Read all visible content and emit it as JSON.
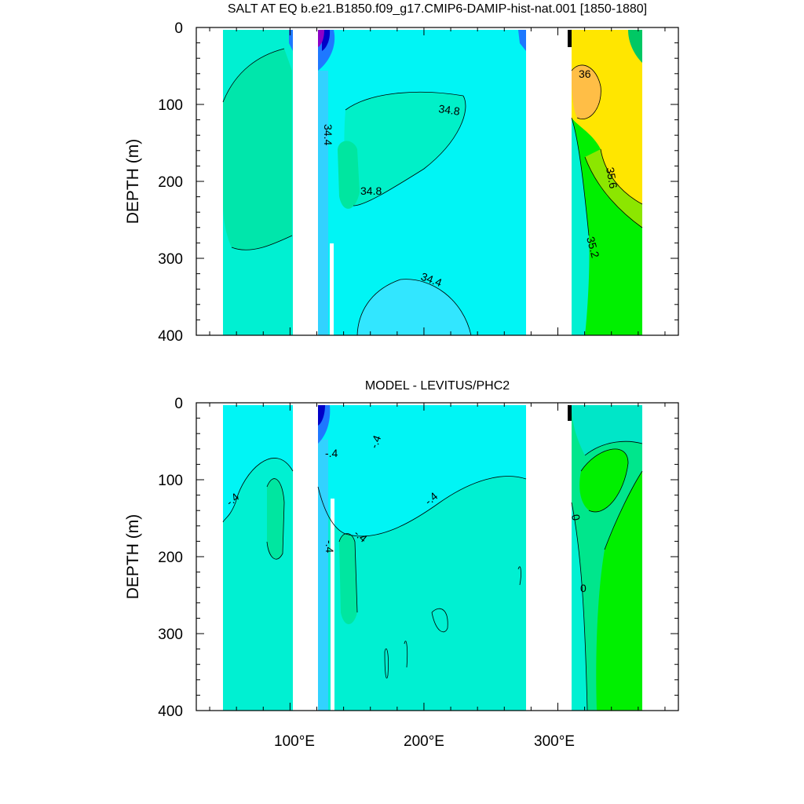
{
  "chart_data": [
    {
      "type": "contour",
      "title": "SALT AT EQ b.e21.B1850.f09_g17.CMIP6-DAMIP-hist-nat.001 [1850-1880]",
      "xlabel": "",
      "ylabel": "DEPTH (m)",
      "xlim": [
        30,
        390
      ],
      "ylim": [
        400,
        0
      ],
      "x_ticks": [
        {
          "value": 100,
          "label": "100°E"
        },
        {
          "value": 200,
          "label": "200°E"
        },
        {
          "value": 300,
          "label": "300°E"
        }
      ],
      "y_ticks": [
        {
          "value": 0,
          "label": "0"
        },
        {
          "value": 100,
          "label": "100"
        },
        {
          "value": 200,
          "label": "200"
        },
        {
          "value": 300,
          "label": "300"
        },
        {
          "value": 400,
          "label": "400"
        }
      ],
      "contour_labels": [
        {
          "text": "36",
          "x": 335,
          "depth": 60
        },
        {
          "text": "34.8",
          "x": 212,
          "depth": 105
        },
        {
          "text": "34.4",
          "x": 128,
          "depth": 138
        },
        {
          "text": "34.8",
          "x": 150,
          "depth": 212
        },
        {
          "text": "35.6",
          "x": 352,
          "depth": 200
        },
        {
          "text": "35.2",
          "x": 342,
          "depth": 285
        },
        {
          "text": "34.4",
          "x": 200,
          "depth": 330
        }
      ]
    },
    {
      "type": "contour",
      "title": "MODEL - LEVITUS/PHC2",
      "xlabel": "",
      "ylabel": "DEPTH (m)",
      "xlim": [
        30,
        390
      ],
      "ylim": [
        400,
        0
      ],
      "x_ticks": [
        {
          "value": 100,
          "label": "100°E"
        },
        {
          "value": 200,
          "label": "200°E"
        },
        {
          "value": 300,
          "label": "300°E"
        }
      ],
      "y_ticks": [
        {
          "value": 0,
          "label": "0"
        },
        {
          "value": 100,
          "label": "100"
        },
        {
          "value": 200,
          "label": "200"
        },
        {
          "value": 300,
          "label": "300"
        },
        {
          "value": 400,
          "label": "400"
        }
      ],
      "contour_labels": [
        {
          "text": "-.4",
          "x": 55,
          "depth": 128
        },
        {
          "text": "-.4",
          "x": 130,
          "depth": 68
        },
        {
          "text": "-.4",
          "x": 168,
          "depth": 52
        },
        {
          "text": "-.4",
          "x": 210,
          "depth": 128
        },
        {
          "text": "-.4",
          "x": 130,
          "depth": 168
        },
        {
          "text": "-.4",
          "x": 150,
          "depth": 170
        },
        {
          "text": "0",
          "x": 316,
          "depth": 140
        },
        {
          "text": "0",
          "x": 323,
          "depth": 238
        }
      ]
    }
  ],
  "colors": {
    "cyan": "#00f5f5",
    "teal": "#00f0d2",
    "green": "#00e68c",
    "bright_green": "#00f000",
    "yellow_green": "#8ce600",
    "yellow": "#ffe600",
    "orange": "#ffbe46",
    "light_blue": "#32e6ff",
    "blue": "#1e78ff",
    "dark_blue": "#0000c8",
    "purple": "#8c00c8"
  }
}
